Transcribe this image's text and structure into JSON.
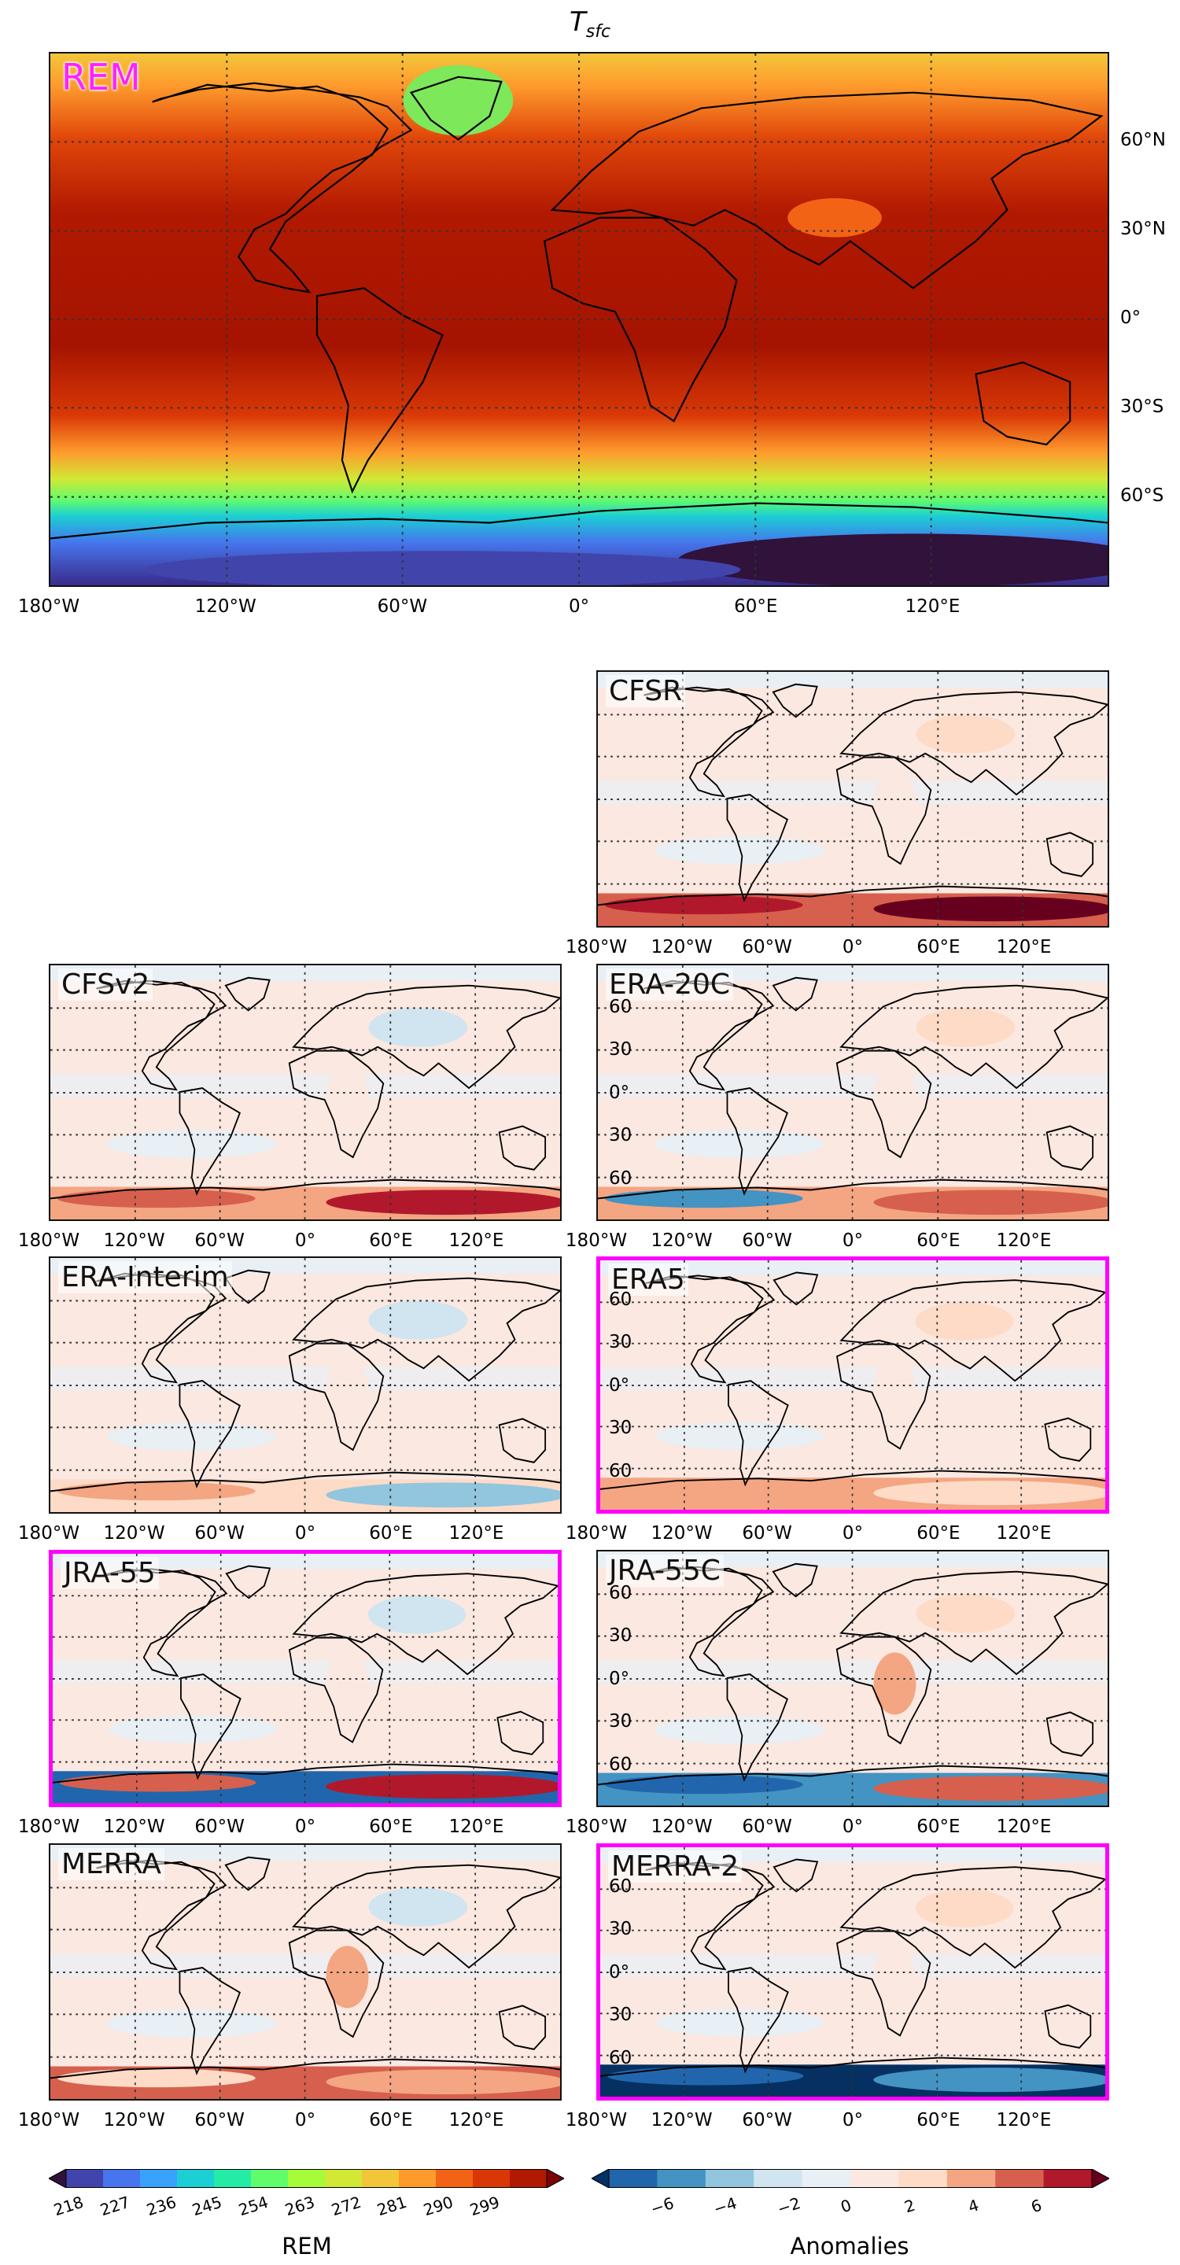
{
  "title": {
    "base": "T",
    "sub": "sfc"
  },
  "main": {
    "label": "REM"
  },
  "lon_ticks": [
    "180°W",
    "120°W",
    "60°W",
    "0°",
    "60°E",
    "120°E"
  ],
  "main_lat_ticks": [
    "60°N",
    "30°N",
    "0°",
    "30°S",
    "60°S"
  ],
  "small_lat_ticks": [
    "60",
    "30",
    "0°",
    "30",
    "60"
  ],
  "panels": [
    {
      "name": "CFSR",
      "highlight": false
    },
    {
      "name": "CFSv2",
      "highlight": false
    },
    {
      "name": "ERA-20C",
      "highlight": false
    },
    {
      "name": "ERA-Interim",
      "highlight": false
    },
    {
      "name": "ERA5",
      "highlight": true
    },
    {
      "name": "JRA-55",
      "highlight": true
    },
    {
      "name": "JRA-55C",
      "highlight": false
    },
    {
      "name": "MERRA",
      "highlight": false
    },
    {
      "name": "MERRA-2",
      "highlight": true
    }
  ],
  "colorbar_rem": {
    "label": "REM",
    "ticks": [
      "218",
      "227",
      "236",
      "245",
      "254",
      "263",
      "272",
      "281",
      "290",
      "299"
    ],
    "colors": [
      "#30123b",
      "#4145ab",
      "#4675ed",
      "#39a2fc",
      "#1bcfd4",
      "#24eca6",
      "#61fc6c",
      "#a4fc3b",
      "#d1e834",
      "#f3c63a",
      "#fe9b2d",
      "#f36315",
      "#d93806",
      "#b11901",
      "#7a0403"
    ]
  },
  "colorbar_anom": {
    "label": "Anomalies",
    "ticks": [
      "−6",
      "−4",
      "−2",
      "0",
      "2",
      "4",
      "6"
    ],
    "colors": [
      "#053061",
      "#2166ac",
      "#4393c3",
      "#92c5de",
      "#d1e5f0",
      "#e8eff5",
      "#fbe8e1",
      "#fddbc7",
      "#f4a582",
      "#d6604d",
      "#b2182b",
      "#67001f"
    ]
  }
}
